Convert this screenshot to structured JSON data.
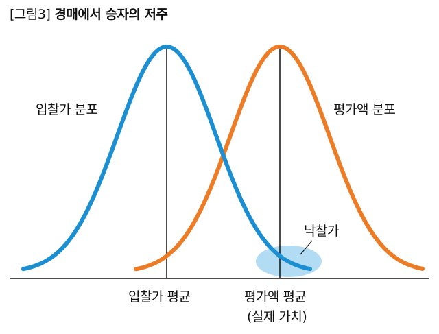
{
  "title": {
    "tag": "[그림3]",
    "text": "경매에서 승자의 저주"
  },
  "labels": {
    "bid_distribution": "입찰가 분포",
    "appraisal_distribution": "평가액 분포",
    "winning_bid": "낙찰가",
    "bid_mean": "입찰가 평균",
    "appraisal_mean": "평가액 평균",
    "real_value": "(실제 가치)"
  },
  "colors": {
    "bid_curve": "#1c8fd2",
    "appraisal_curve": "#ec7c25",
    "highlight": "#aad8f2",
    "axis": "#111111"
  }
}
